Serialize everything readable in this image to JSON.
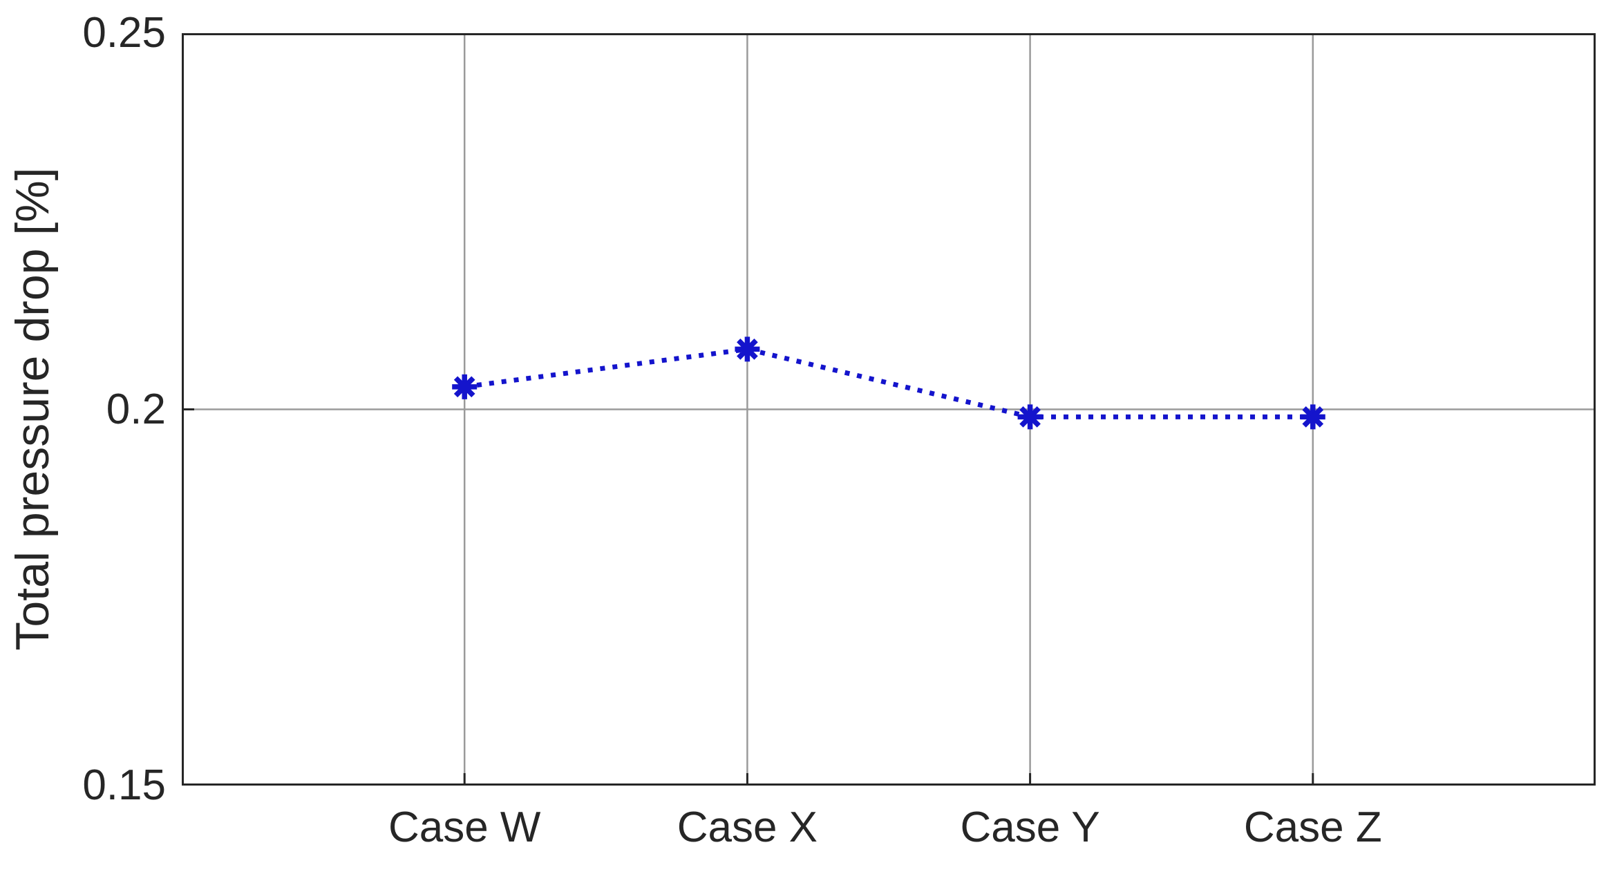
{
  "figure": {
    "background": "#ffffff"
  },
  "chart_data": {
    "type": "line",
    "title": "",
    "categories": [
      "Case W",
      "Case X",
      "Case Y",
      "Case Z"
    ],
    "series": [
      {
        "name": "Total pressure drop",
        "values": [
          0.203,
          0.208,
          0.199,
          0.199
        ],
        "color": "#1414cc",
        "line_style": "dotted",
        "marker": "asterisk"
      }
    ],
    "xlabel": "",
    "ylabel": "Total pressure drop [%]",
    "xlim": [
      0,
      5
    ],
    "x_positions": [
      1,
      2,
      3,
      4
    ],
    "ylim": [
      0.15,
      0.25
    ],
    "yticks": [
      0.15,
      0.2,
      0.25
    ],
    "ytick_labels": [
      "0.15",
      "0.2",
      "0.25"
    ],
    "grid": true,
    "legend": "none",
    "colors": {
      "grid": "#9a9a9a",
      "axis": "#262626",
      "tick_text": "#262626"
    }
  }
}
